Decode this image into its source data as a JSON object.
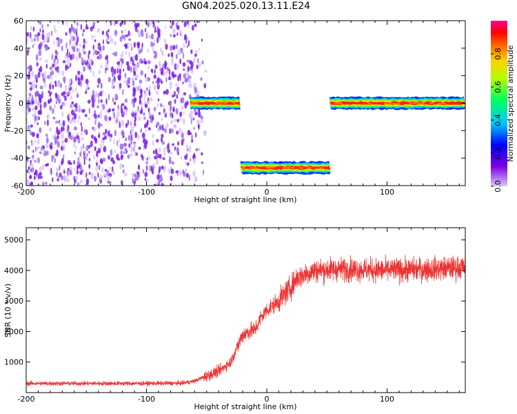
{
  "title": "GN04.2025.020.13.11.E24",
  "chart_data": [
    {
      "type": "heatmap",
      "xlabel": "Height of straight line (km)",
      "ylabel": "Frequency (Hz)",
      "xlim": [
        -200,
        165
      ],
      "ylim": [
        -60,
        60
      ],
      "xticks": [
        -200,
        -100,
        0,
        100
      ],
      "yticks": [
        -60,
        -40,
        -20,
        0,
        20,
        40,
        60
      ],
      "colorbar": {
        "label": "Normalized spectral amplitude",
        "range": [
          0,
          1
        ],
        "ticks": [
          0.0,
          0.2,
          0.4,
          0.6,
          0.8
        ],
        "colormap": "rainbow (purple-blue-cyan-green-yellow-orange-red-magenta)"
      },
      "regions": [
        {
          "kind": "broadband_noise",
          "x": [
            -200,
            -52
          ],
          "y": [
            -60,
            60
          ],
          "amplitude": 0.05
        },
        {
          "kind": "tone",
          "x": [
            -64,
            -22
          ],
          "y_center": 0,
          "amplitude": 0.9
        },
        {
          "kind": "tone",
          "x": [
            -22,
            53
          ],
          "y_center": -47,
          "amplitude": 0.95
        },
        {
          "kind": "tone",
          "x": [
            52,
            165
          ],
          "y_center": 0,
          "amplitude": 0.95
        }
      ]
    },
    {
      "type": "line",
      "xlabel": "Height of straight line (km)",
      "ylabel": "SNR (10 * v/v)",
      "xlim": [
        -200,
        165
      ],
      "ylim": [
        0,
        5400
      ],
      "xticks": [
        -200,
        -100,
        0,
        100
      ],
      "yticks": [
        1000,
        2000,
        3000,
        4000,
        5000
      ],
      "color": "#ee3333",
      "series": [
        {
          "x": [
            -200,
            -150,
            -100,
            -70,
            -60,
            -50,
            -40,
            -30,
            -20,
            -15,
            -10,
            -5,
            0,
            10,
            20,
            25,
            30,
            40,
            60,
            100,
            140,
            165
          ],
          "y": [
            300,
            300,
            300,
            310,
            380,
            550,
            700,
            1000,
            1900,
            2000,
            2050,
            2450,
            2700,
            3000,
            3450,
            3750,
            3850,
            4000,
            4050,
            4000,
            4050,
            4100
          ]
        }
      ]
    }
  ]
}
